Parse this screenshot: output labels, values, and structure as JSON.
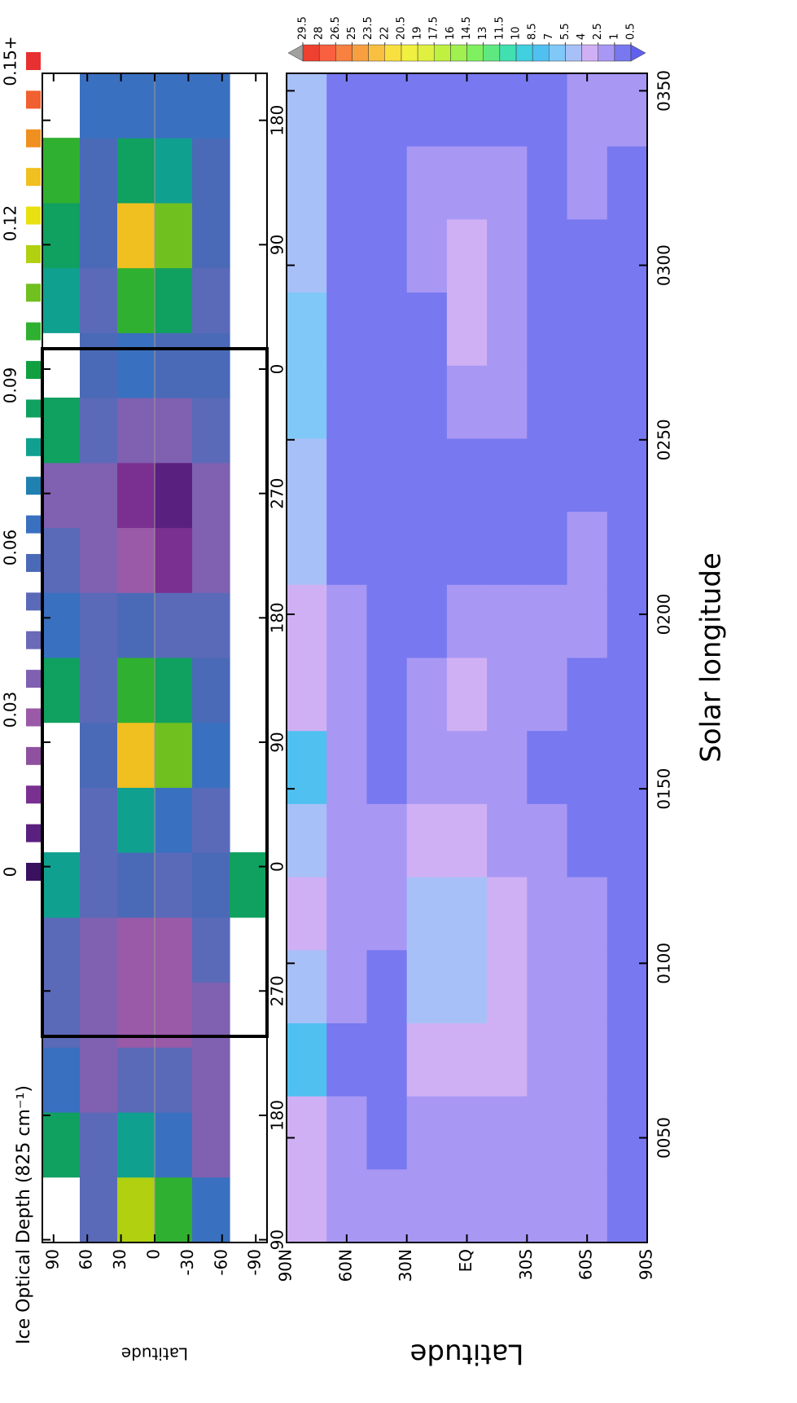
{
  "chart_data": [
    {
      "type": "heatmap",
      "title": "Ice Optical Depth (825 cm⁻¹)",
      "y_label": "Latitude",
      "xlim": [
        88,
        934
      ],
      "xticks": [
        90,
        180,
        270,
        {
          "value": 360,
          "label": "0"
        },
        {
          "value": 450,
          "label": "90"
        },
        {
          "value": 540,
          "label": "180"
        },
        {
          "value": 630,
          "label": "270"
        },
        {
          "value": 720,
          "label": "0"
        },
        {
          "value": 810,
          "label": "90"
        },
        {
          "value": 900,
          "label": "180"
        }
      ],
      "ylim": [
        -100,
        100
      ],
      "yticks": [
        90,
        60,
        30,
        0,
        -30,
        -60,
        -90
      ],
      "zlim": [
        0,
        0.15
      ],
      "colorbar_ticks": [
        0,
        0.03,
        0.06,
        0.09,
        0.12,
        {
          "value": 0.15,
          "label": "0.15+"
        }
      ],
      "colors": [
        "#3a1060",
        "#5a2080",
        "#7a3090",
        "#9050a0",
        "#9a5aa8",
        "#8060b0",
        "#6a6ab8",
        "#5a6ab8",
        "#4a6ab8",
        "#3a70c0",
        "#2080b0",
        "#10a090",
        "#10a060",
        "#10a040",
        "#30b030",
        "#70c020",
        "#b0d010",
        "#e8e010",
        "#f0c020",
        "#f09020",
        "#f06030",
        "#e83030"
      ],
      "z": [
        [
          null,
          0.09,
          0.07,
          0.05,
          0.05,
          0.08,
          null,
          null,
          0.09,
          0.07,
          0.05,
          0.04,
          0.09,
          null,
          0.08,
          0.09,
          0.1,
          null
        ],
        [
          0.05,
          0.05,
          0.04,
          0.04,
          0.04,
          0.05,
          0.05,
          0.06,
          0.05,
          0.05,
          0.04,
          0.04,
          0.05,
          0.06,
          0.05,
          0.06,
          0.06,
          0.07
        ],
        [
          0.12,
          0.08,
          0.05,
          0.03,
          0.03,
          0.06,
          0.08,
          0.13,
          0.1,
          0.06,
          0.03,
          0.02,
          0.04,
          0.07,
          0.1,
          0.13,
          0.09,
          0.07
        ],
        [
          0.1,
          0.07,
          0.05,
          0.03,
          0.03,
          0.05,
          0.07,
          0.11,
          0.09,
          0.05,
          0.02,
          0.01,
          0.04,
          0.06,
          0.09,
          0.11,
          0.08,
          0.07
        ],
        [
          0.07,
          0.04,
          0.04,
          0.04,
          0.05,
          0.06,
          0.05,
          0.07,
          0.06,
          0.05,
          0.04,
          0.04,
          0.05,
          0.06,
          0.05,
          0.06,
          0.06,
          0.07
        ],
        [
          null,
          null,
          null,
          null,
          null,
          0.09,
          null,
          null,
          null,
          null,
          null,
          null,
          null,
          null,
          null,
          null,
          null,
          null
        ]
      ]
    },
    {
      "type": "heatmap",
      "x_label": "Solar longitude",
      "y_label": "Latitude",
      "xlim": [
        20,
        355
      ],
      "xticks": [
        {
          "value": 50,
          "label": "0050"
        },
        {
          "value": 100,
          "label": "0100"
        },
        {
          "value": 150,
          "label": "0150"
        },
        {
          "value": 200,
          "label": "0200"
        },
        {
          "value": 250,
          "label": "0250"
        },
        {
          "value": 300,
          "label": "0300"
        },
        {
          "value": 350,
          "label": "0350"
        }
      ],
      "ylim": [
        -90,
        90
      ],
      "yticks": [
        {
          "value": 90,
          "label": "90N"
        },
        {
          "value": 60,
          "label": "60N"
        },
        {
          "value": 30,
          "label": "30N"
        },
        {
          "value": 0,
          "label": "EQ"
        },
        {
          "value": -30,
          "label": "30S"
        },
        {
          "value": -60,
          "label": "60S"
        },
        {
          "value": -90,
          "label": "90S"
        }
      ],
      "levels": [
        0.5,
        1,
        2.5,
        4,
        5.5,
        7,
        8.5,
        10,
        11.5,
        13,
        14.5,
        16,
        17.5,
        19,
        20.5,
        22,
        23.5,
        25,
        26.5,
        28,
        29.5
      ],
      "colors": [
        "#6060ee",
        "#7878f0",
        "#a898f4",
        "#d0b0f4",
        "#a8c0f8",
        "#80c8f8",
        "#50c0f0",
        "#40d0e0",
        "#40e0b0",
        "#60e880",
        "#80f060",
        "#a0f050",
        "#c0f040",
        "#e0f040",
        "#f0f040",
        "#f8e040",
        "#f8c040",
        "#f8a040",
        "#f88040",
        "#f86040",
        "#f04030",
        "#a0a0a0"
      ],
      "z": [
        [
          3,
          3,
          8,
          4,
          3,
          4,
          7,
          3,
          3,
          4,
          5,
          6,
          6,
          5,
          5,
          5
        ],
        [
          2,
          2,
          0.8,
          2,
          2,
          2,
          2,
          2,
          1.5,
          0.8,
          0.8,
          0.8,
          0.8,
          0.8,
          0.8,
          0.8
        ],
        [
          2,
          0.8,
          0.8,
          0.8,
          2,
          2,
          0.8,
          0.8,
          0.8,
          0.8,
          0.8,
          0.8,
          0.8,
          0.8,
          0.8,
          0.8
        ],
        [
          2,
          2,
          3,
          5,
          5,
          3,
          2,
          1.5,
          0.8,
          0.8,
          0.8,
          0.8,
          0.8,
          2,
          2,
          0.8
        ],
        [
          2,
          2,
          3,
          5,
          5,
          3,
          2,
          3,
          2,
          0.8,
          0.8,
          2,
          2.5,
          3,
          2,
          0.8
        ],
        [
          1.5,
          2,
          3,
          3,
          3,
          2,
          2,
          2,
          1.5,
          0.8,
          0.8,
          1.5,
          2,
          2,
          1.5,
          0.8
        ],
        [
          2,
          2,
          2,
          2,
          2,
          1.5,
          0.8,
          2,
          1.5,
          0.8,
          0.8,
          0.8,
          0.8,
          0.8,
          0.8,
          0.8
        ],
        [
          1.5,
          2,
          2,
          2,
          2,
          0.8,
          0.8,
          0.8,
          2,
          1.5,
          0.8,
          0.8,
          0.8,
          0.8,
          2,
          2
        ],
        [
          0.8,
          0.8,
          0.8,
          0.8,
          0.8,
          0.8,
          0.8,
          0.8,
          0.8,
          0.8,
          0.8,
          0.8,
          0.8,
          0.8,
          0.8,
          2
        ]
      ]
    }
  ]
}
